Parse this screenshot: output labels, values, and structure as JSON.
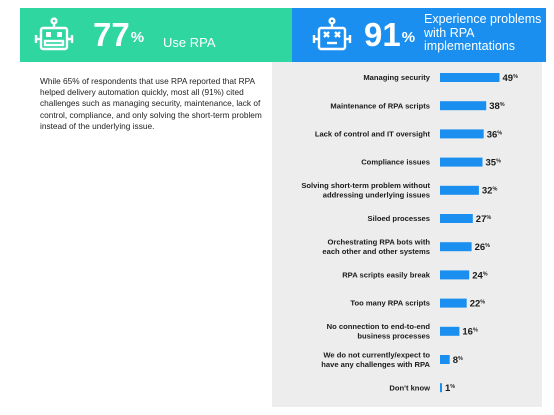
{
  "banner_left": {
    "pct": "77",
    "pct_sign": "%",
    "label": "Use RPA",
    "color": "#2fd6a0",
    "icon": "robot-icon"
  },
  "banner_right": {
    "pct": "91",
    "pct_sign": "%",
    "label": "Experience problems with RPA implementations",
    "color": "#1b8ff0",
    "icon": "robot-error-icon"
  },
  "body_text": "While 65% of respondents that use RPA reported that RPA helped delivery automation quickly, most all (91%) cited challenges such as managing security, maintenance, lack of control, compliance, and only solving the short-term problem instead of the underlying issue.",
  "chart_data": {
    "type": "bar",
    "orientation": "horizontal",
    "bar_color": "#1b8ff0",
    "unit": "%",
    "categories": [
      [
        "Managing security"
      ],
      [
        "Maintenance of RPA scripts"
      ],
      [
        "Lack of control and IT oversight"
      ],
      [
        "Compliance issues"
      ],
      [
        "Solving short-term problem without",
        "addressing underlying issues"
      ],
      [
        "Siloed processes"
      ],
      [
        "Orchestrating RPA bots with",
        "each other and other systems"
      ],
      [
        "RPA scripts easily break"
      ],
      [
        "Too many RPA scripts"
      ],
      [
        "No connection to end-to-end",
        "business processes"
      ],
      [
        "We do not currently/expect to",
        "have any challenges with RPA"
      ],
      [
        "Don't know"
      ]
    ],
    "values": [
      49,
      38,
      36,
      35,
      32,
      27,
      26,
      24,
      22,
      16,
      8,
      1
    ]
  }
}
